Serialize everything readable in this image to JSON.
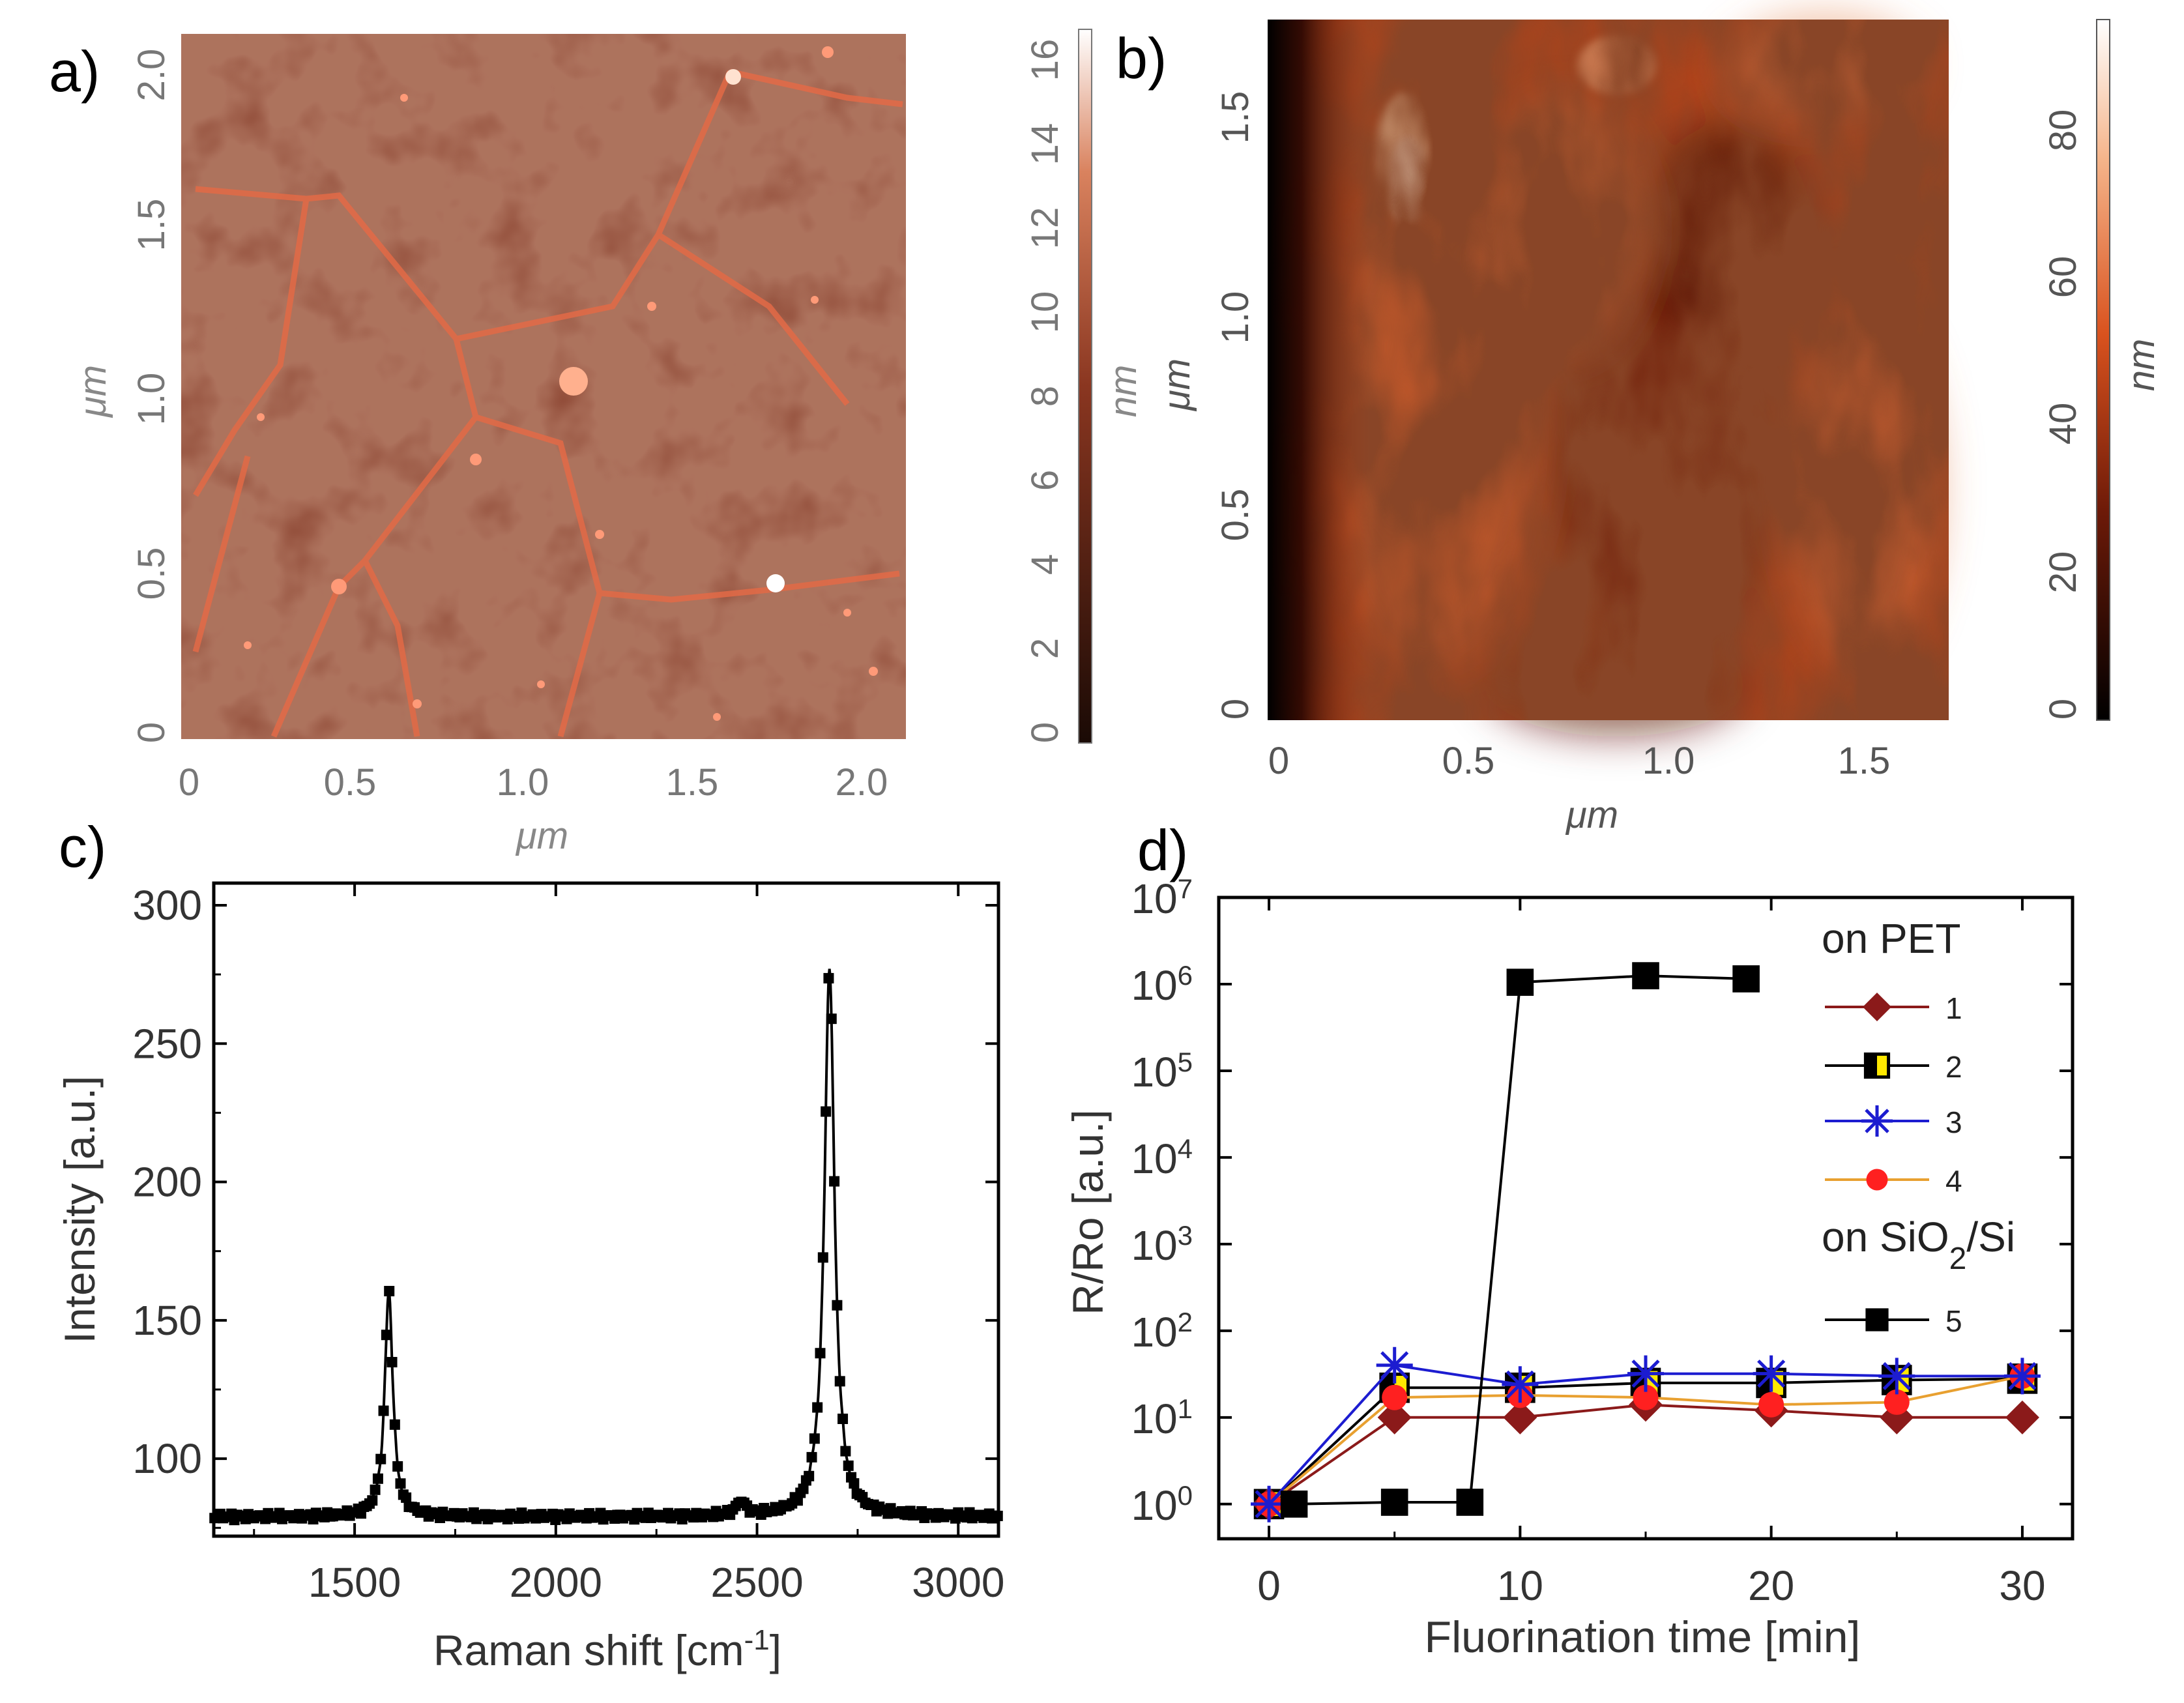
{
  "chart_data": [
    {
      "panel": "a)",
      "type": "heatmap",
      "title": "",
      "xlabel": "μm",
      "ylabel": "μm",
      "xticks": [
        "0",
        "0.5",
        "1.0",
        "1.5",
        "2.0"
      ],
      "yticks": [
        "0",
        "0.5",
        "1.0",
        "1.5",
        "2.0"
      ],
      "xlim": [
        0,
        2.1
      ],
      "ylim": [
        0,
        2.1
      ],
      "colorbar": {
        "label": "nm",
        "ticks": [
          "0",
          "2",
          "4",
          "6",
          "8",
          "10",
          "12",
          "14",
          "16"
        ],
        "range": [
          0,
          17
        ]
      },
      "colors": {
        "low": "#2a0d06",
        "mid": "#8a3620",
        "high": "#ffffff"
      }
    },
    {
      "panel": "b)",
      "type": "heatmap",
      "title": "",
      "xlabel": "μm",
      "ylabel": "μm",
      "xticks": [
        "0",
        "0.5",
        "1.0",
        "1.5"
      ],
      "yticks": [
        "0",
        "0.5",
        "1.0",
        "1.5"
      ],
      "xlim": [
        0,
        1.72
      ],
      "ylim": [
        0,
        1.72
      ],
      "colorbar": {
        "label": "nm",
        "ticks": [
          "0",
          "20",
          "40",
          "60",
          "80"
        ],
        "range": [
          0,
          95
        ]
      },
      "colors": {
        "low": "#000000",
        "mid": "#c8461c",
        "high": "#ffffff"
      }
    },
    {
      "panel": "c)",
      "type": "line",
      "title": "",
      "xlabel": "Raman shift [cm",
      "xlabel_sup": "-1",
      "xlabel_end": "]",
      "ylabel": "Intensity [a.u.]",
      "xlim": [
        1150,
        3100
      ],
      "ylim": [
        72,
        308
      ],
      "xticks": [
        1500,
        2000,
        2500,
        3000
      ],
      "yticks": [
        100,
        150,
        200,
        250,
        300
      ],
      "baseline": 79,
      "peaks": [
        {
          "center": 1585,
          "height": 82,
          "width": 12
        },
        {
          "center": 2460,
          "height": 5,
          "width": 14
        },
        {
          "center": 2680,
          "height": 199,
          "width": 15
        }
      ]
    },
    {
      "panel": "d)",
      "type": "scatter",
      "title": "",
      "xlabel": "Fluorination time [min]",
      "ylabel": "R/Ro [a.u.]",
      "xlim": [
        -2,
        32
      ],
      "ylim_log10": [
        -0.4,
        7
      ],
      "xticks": [
        0,
        10,
        20,
        30
      ],
      "yticks_log10": [
        0,
        1,
        2,
        3,
        4,
        5,
        6,
        7
      ],
      "ytick_base": "10",
      "legend": {
        "header_1": "on PET",
        "header_2_pre": "on SiO",
        "header_2_sub": "2",
        "header_2_post": "/Si"
      },
      "series": [
        {
          "name": "1",
          "marker": "diamond",
          "color": "#8b1a1a",
          "line": "#8b1a1a",
          "x": [
            0,
            5,
            10,
            15,
            20,
            25,
            30
          ],
          "y": [
            1,
            10,
            10,
            14,
            12,
            10,
            10
          ]
        },
        {
          "name": "2",
          "marker": "square-half",
          "color": "#000000",
          "line": "#000000",
          "x": [
            0,
            5,
            10,
            15,
            20,
            25,
            30
          ],
          "y": [
            1,
            22,
            22,
            25,
            25,
            27,
            28
          ]
        },
        {
          "name": "3",
          "marker": "star",
          "color": "#1c1cd0",
          "line": "#1c1cd0",
          "x": [
            0,
            5,
            10,
            15,
            20,
            25,
            30
          ],
          "y": [
            1,
            40,
            24,
            32,
            32,
            30,
            30
          ]
        },
        {
          "name": "4",
          "marker": "circle",
          "color": "#ff2020",
          "line": "#e8a030",
          "x": [
            0,
            5,
            10,
            15,
            20,
            25,
            30
          ],
          "y": [
            1,
            17,
            18,
            17,
            14,
            15,
            30
          ]
        },
        {
          "name": "5",
          "marker": "square",
          "color": "#000000",
          "line": "#000000",
          "x": [
            1,
            5,
            8,
            10,
            15,
            19
          ],
          "y": [
            1,
            1.05,
            1.05,
            1050000,
            1250000,
            1150000
          ]
        }
      ]
    }
  ]
}
